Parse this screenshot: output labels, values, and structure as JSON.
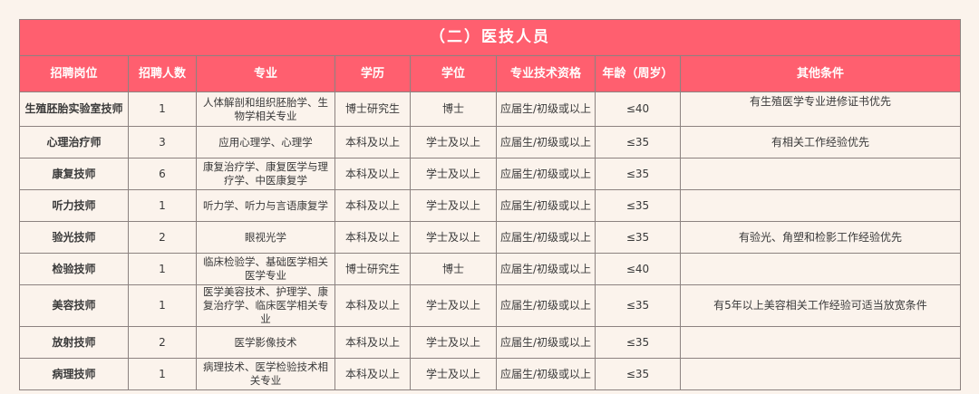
{
  "title": "（二）医技人员",
  "colors": {
    "header_bg": "#ff5f6f",
    "page_bg": "#fbf3ec"
  },
  "columns": [
    "招聘岗位",
    "招聘人数",
    "专业",
    "学历",
    "学位",
    "专业技术资格",
    "年龄（周岁）",
    "其他条件"
  ],
  "rows": [
    {
      "position": "生殖胚胎实验室技师",
      "count": "1",
      "major": "人体解剖和组织胚胎学、生物学相关专业",
      "education": "博士研究生",
      "degree": "博士",
      "qualification": "应届生/初级或以上",
      "age": "≤40",
      "other": "有生殖医学专业进修证书优先"
    },
    {
      "position": "心理治疗师",
      "count": "3",
      "major": "应用心理学、心理学",
      "education": "本科及以上",
      "degree": "学士及以上",
      "qualification": "应届生/初级或以上",
      "age": "≤35",
      "other": "有相关工作经验优先"
    },
    {
      "position": "康复技师",
      "count": "6",
      "major": "康复治疗学、康复医学与理疗学、中医康复学",
      "education": "本科及以上",
      "degree": "学士及以上",
      "qualification": "应届生/初级或以上",
      "age": "≤35",
      "other": ""
    },
    {
      "position": "听力技师",
      "count": "1",
      "major": "听力学、听力与言语康复学",
      "education": "本科及以上",
      "degree": "学士及以上",
      "qualification": "应届生/初级或以上",
      "age": "≤35",
      "other": ""
    },
    {
      "position": "验光技师",
      "count": "2",
      "major": "眼视光学",
      "education": "本科及以上",
      "degree": "学士及以上",
      "qualification": "应届生/初级或以上",
      "age": "≤35",
      "other": "有验光、角塑和检影工作经验优先"
    },
    {
      "position": "检验技师",
      "count": "1",
      "major": "临床检验学、基础医学相关医学专业",
      "education": "博士研究生",
      "degree": "博士",
      "qualification": "应届生/初级或以上",
      "age": "≤40",
      "other": ""
    },
    {
      "position": "美容技师",
      "count": "1",
      "major": "医学美容技术、护理学、康复治疗学、临床医学相关专业",
      "education": "本科及以上",
      "degree": "学士及以上",
      "qualification": "应届生/初级或以上",
      "age": "≤35",
      "other": "有5年以上美容相关工作经验可适当放宽条件"
    },
    {
      "position": "放射技师",
      "count": "2",
      "major": "医学影像技术",
      "education": "本科及以上",
      "degree": "学士及以上",
      "qualification": "应届生/初级或以上",
      "age": "≤35",
      "other": ""
    },
    {
      "position": "病理技师",
      "count": "1",
      "major": "病理技术、医学检验技术相关专业",
      "education": "本科及以上",
      "degree": "学士及以上",
      "qualification": "应届生/初级或以上",
      "age": "≤35",
      "other": ""
    }
  ]
}
